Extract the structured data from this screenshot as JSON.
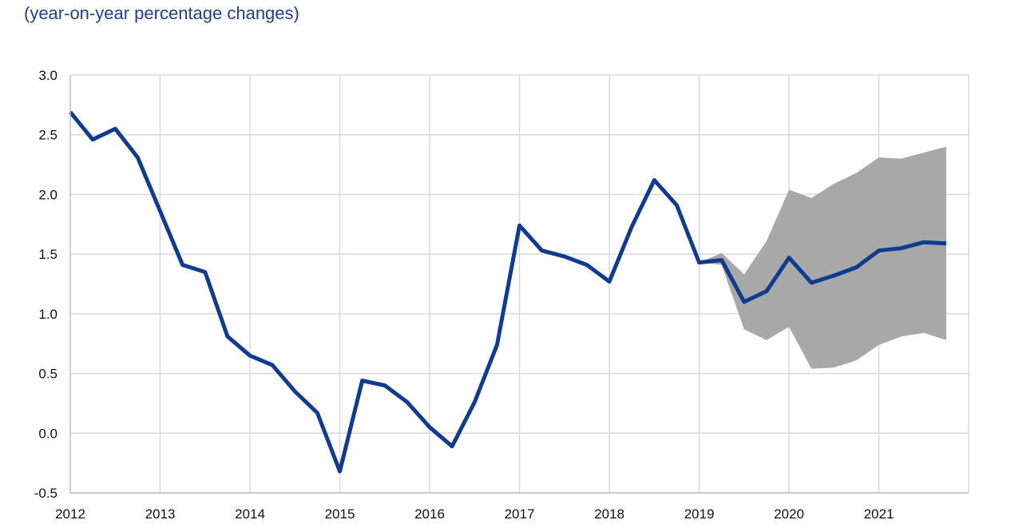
{
  "header": {
    "subtitle": "(year-on-year percentage changes)"
  },
  "colors": {
    "line": "#103b8f",
    "band": "#a8a8a8",
    "grid": "#d9d9d9",
    "axis": "#bfbfbf"
  },
  "chart_data": {
    "type": "line",
    "title": "",
    "subtitle": "(year-on-year percentage changes)",
    "xlabel": "",
    "ylabel": "",
    "xlim": [
      2012,
      2022
    ],
    "ylim": [
      -0.5,
      3.0
    ],
    "yticks": [
      -0.5,
      0.0,
      0.5,
      1.0,
      1.5,
      2.0,
      2.5,
      3.0
    ],
    "ytick_labels": [
      "-0.5",
      "0.0",
      "0.5",
      "1.0",
      "1.5",
      "2.0",
      "2.5",
      "3.0"
    ],
    "xticks": [
      2012,
      2013,
      2014,
      2015,
      2016,
      2017,
      2018,
      2019,
      2020,
      2021
    ],
    "xtick_labels": [
      "2012",
      "2013",
      "2014",
      "2015",
      "2016",
      "2017",
      "2018",
      "2019",
      "2020",
      "2021"
    ],
    "grid": true,
    "legend": "none",
    "series": [
      {
        "x": [
          2012.0,
          2012.25,
          2012.5,
          2012.75,
          2013.0,
          2013.25,
          2013.5,
          2013.75,
          2014.0,
          2014.25,
          2014.5,
          2014.75,
          2015.0,
          2015.25,
          2015.5,
          2015.75,
          2016.0,
          2016.25,
          2016.5,
          2016.75,
          2017.0,
          2017.25,
          2017.5,
          2017.75,
          2018.0,
          2018.25,
          2018.5,
          2018.75,
          2019.0,
          2019.25,
          2019.5,
          2019.75,
          2020.0,
          2020.25,
          2020.5,
          2020.75,
          2021.0,
          2021.25,
          2021.5,
          2021.75
        ],
        "values": [
          2.69,
          2.46,
          2.55,
          2.31,
          1.86,
          1.41,
          1.35,
          0.81,
          0.65,
          0.57,
          0.35,
          0.17,
          -0.32,
          0.44,
          0.4,
          0.26,
          0.05,
          -0.11,
          0.26,
          0.74,
          1.74,
          1.53,
          1.48,
          1.41,
          1.27,
          1.73,
          2.12,
          1.91,
          1.43,
          1.45,
          1.1,
          1.19,
          1.47,
          1.26,
          1.32,
          1.39,
          1.53,
          1.55,
          1.6,
          1.59
        ]
      }
    ],
    "band": {
      "x": [
        2019.0,
        2019.25,
        2019.5,
        2019.75,
        2020.0,
        2020.25,
        2020.5,
        2020.75,
        2021.0,
        2021.25,
        2021.5,
        2021.75
      ],
      "upper": [
        1.43,
        1.51,
        1.33,
        1.61,
        2.04,
        1.97,
        2.09,
        2.18,
        2.31,
        2.3,
        2.35,
        2.4
      ],
      "lower": [
        1.43,
        1.41,
        0.87,
        0.78,
        0.89,
        0.54,
        0.55,
        0.61,
        0.74,
        0.81,
        0.84,
        0.78
      ]
    }
  }
}
